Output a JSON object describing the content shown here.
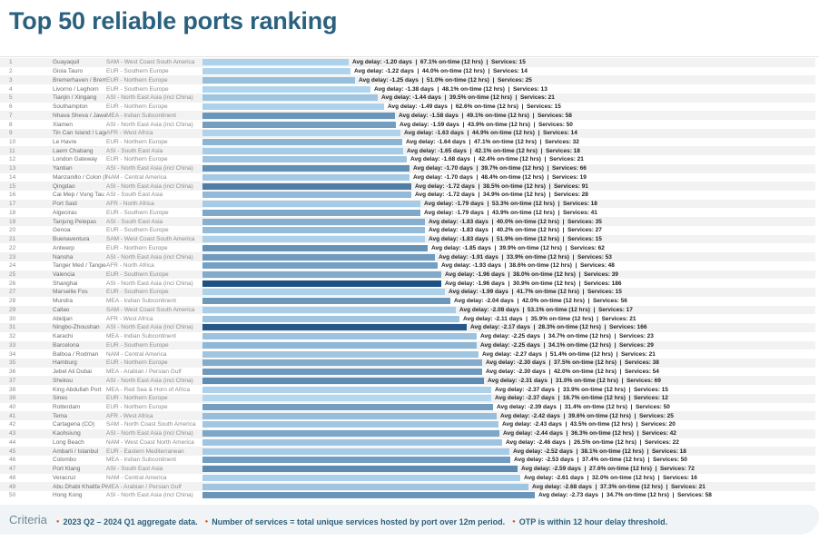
{
  "title": "Top 50 reliable ports ranking",
  "chart_data": {
    "type": "bar",
    "orientation": "horizontal",
    "title": "Top 50 reliable ports ranking",
    "bar_length_encodes": "avg delay magnitude (days)",
    "bar_color_encodes": "number of services (darker = more)",
    "xlim_days": [
      0,
      3
    ],
    "legend": "none",
    "grid": "row banding only",
    "label_template": "Avg delay: {delay} days  |  {otp}% on-time (12 hrs)  |  Services: {services}",
    "rows": [
      {
        "rank": 1,
        "port": "Guayaquil",
        "region": "SAM - West Coast South America",
        "delay": "-1.20",
        "otp": "67.1",
        "services": 15
      },
      {
        "rank": 2,
        "port": "Gioia Tauro",
        "region": "EUR - Southern Europe",
        "delay": "-1.22",
        "otp": "44.0",
        "services": 14
      },
      {
        "rank": 3,
        "port": "Bremerhaven / Bremen",
        "region": "EUR - Northern Europe",
        "delay": "-1.25",
        "otp": "51.0",
        "services": 25
      },
      {
        "rank": 4,
        "port": "Livorno / Leghorn",
        "region": "EUR - Southern Europe",
        "delay": "-1.38",
        "otp": "48.1",
        "services": 13
      },
      {
        "rank": 5,
        "port": "Tianjin / Xingang",
        "region": "ASI - North East Asia (incl China)",
        "delay": "-1.44",
        "otp": "39.5",
        "services": 21
      },
      {
        "rank": 6,
        "port": "Southampton",
        "region": "EUR - Northern Europe",
        "delay": "-1.49",
        "otp": "62.6",
        "services": 15
      },
      {
        "rank": 7,
        "port": "Nhava Sheva / Jawaharlal Nehru",
        "region": "MEA - Indian Subcontinent",
        "delay": "-1.58",
        "otp": "49.1",
        "services": 58
      },
      {
        "rank": 8,
        "port": "Xiamen",
        "region": "ASI - North East Asia (incl China)",
        "delay": "-1.59",
        "otp": "43.9",
        "services": 50
      },
      {
        "rank": 9,
        "port": "Tin Can Island / Lagos",
        "region": "AFR - West Africa",
        "delay": "-1.63",
        "otp": "44.9",
        "services": 14
      },
      {
        "rank": 10,
        "port": "Le Havre",
        "region": "EUR - Northern Europe",
        "delay": "-1.64",
        "otp": "47.1",
        "services": 32
      },
      {
        "rank": 11,
        "port": "Laem Chabang",
        "region": "ASI - South East Asia",
        "delay": "-1.65",
        "otp": "42.1",
        "services": 18
      },
      {
        "rank": 12,
        "port": "London Gateway",
        "region": "EUR - Northern Europe",
        "delay": "-1.68",
        "otp": "42.4",
        "services": 21
      },
      {
        "rank": 13,
        "port": "Yantian",
        "region": "ASI - North East Asia (incl China)",
        "delay": "-1.70",
        "otp": "39.7",
        "services": 66
      },
      {
        "rank": 14,
        "port": "Manzanillo / Colon (PA)",
        "region": "NAM - Central America",
        "delay": "-1.70",
        "otp": "48.4",
        "services": 19
      },
      {
        "rank": 15,
        "port": "Qingdao",
        "region": "ASI - North East Asia (incl China)",
        "delay": "-1.72",
        "otp": "38.5",
        "services": 91
      },
      {
        "rank": 16,
        "port": "Cai Mep / Vung Tau",
        "region": "ASI - South East Asia",
        "delay": "-1.72",
        "otp": "34.9",
        "services": 28
      },
      {
        "rank": 17,
        "port": "Port Said",
        "region": "AFR - North Africa",
        "delay": "-1.79",
        "otp": "53.3",
        "services": 18
      },
      {
        "rank": 18,
        "port": "Algeciras",
        "region": "EUR - Southern Europe",
        "delay": "-1.79",
        "otp": "43.9",
        "services": 41
      },
      {
        "rank": 19,
        "port": "Tanjung Pelepas",
        "region": "ASI - South East Asia",
        "delay": "-1.83",
        "otp": "40.0",
        "services": 35
      },
      {
        "rank": 20,
        "port": "Genoa",
        "region": "EUR - Southern Europe",
        "delay": "-1.83",
        "otp": "40.2",
        "services": 27
      },
      {
        "rank": 21,
        "port": "Buenaventura",
        "region": "SAM - West Coast South America",
        "delay": "-1.83",
        "otp": "51.9",
        "services": 15
      },
      {
        "rank": 22,
        "port": "Antwerp",
        "region": "EUR - Northern Europe",
        "delay": "-1.85",
        "otp": "39.9",
        "services": 62
      },
      {
        "rank": 23,
        "port": "Nansha",
        "region": "ASI - North East Asia (incl China)",
        "delay": "-1.91",
        "otp": "33.9",
        "services": 53
      },
      {
        "rank": 24,
        "port": "Tanger Med / Tangier",
        "region": "AFR - North Africa",
        "delay": "-1.93",
        "otp": "38.6",
        "services": 48
      },
      {
        "rank": 25,
        "port": "Valencia",
        "region": "EUR - Southern Europe",
        "delay": "-1.96",
        "otp": "38.0",
        "services": 39
      },
      {
        "rank": 26,
        "port": "Shanghai",
        "region": "ASI - North East Asia (incl China)",
        "delay": "-1.96",
        "otp": "30.9",
        "services": 186
      },
      {
        "rank": 27,
        "port": "Marseille Fos",
        "region": "EUR - Southern Europe",
        "delay": "-1.99",
        "otp": "41.7",
        "services": 15
      },
      {
        "rank": 28,
        "port": "Mundra",
        "region": "MEA - Indian Subcontinent",
        "delay": "-2.04",
        "otp": "42.0",
        "services": 56
      },
      {
        "rank": 29,
        "port": "Callao",
        "region": "SAM - West Coast South America",
        "delay": "-2.08",
        "otp": "53.1",
        "services": 17
      },
      {
        "rank": 30,
        "port": "Abidjan",
        "region": "AFR - West Africa",
        "delay": "-2.11",
        "otp": "35.9",
        "services": 21
      },
      {
        "rank": 31,
        "port": "Ningbo-Zhoushan",
        "region": "ASI - North East Asia (incl China)",
        "delay": "-2.17",
        "otp": "28.3",
        "services": 166
      },
      {
        "rank": 32,
        "port": "Karachi",
        "region": "MEA - Indian Subcontinent",
        "delay": "-2.25",
        "otp": "34.7",
        "services": 23
      },
      {
        "rank": 33,
        "port": "Barcelona",
        "region": "EUR - Southern Europe",
        "delay": "-2.25",
        "otp": "34.1",
        "services": 29
      },
      {
        "rank": 34,
        "port": "Balboa / Rodman",
        "region": "NAM - Central America",
        "delay": "-2.27",
        "otp": "51.4",
        "services": 21
      },
      {
        "rank": 35,
        "port": "Hamburg",
        "region": "EUR - Northern Europe",
        "delay": "-2.30",
        "otp": "37.5",
        "services": 38
      },
      {
        "rank": 36,
        "port": "Jebel Ali Dubai",
        "region": "MEA - Arabian / Persian Gulf",
        "delay": "-2.30",
        "otp": "42.0",
        "services": 54
      },
      {
        "rank": 37,
        "port": "Shekou",
        "region": "ASI - North East Asia (incl China)",
        "delay": "-2.31",
        "otp": "31.0",
        "services": 69
      },
      {
        "rank": 38,
        "port": "King Abdullah Port",
        "region": "MEA - Red Sea & Horn of Africa",
        "delay": "-2.37",
        "otp": "33.9",
        "services": 15
      },
      {
        "rank": 39,
        "port": "Sines",
        "region": "EUR - Northern Europe",
        "delay": "-2.37",
        "otp": "16.7",
        "services": 12
      },
      {
        "rank": 40,
        "port": "Rotterdam",
        "region": "EUR - Northern Europe",
        "delay": "-2.39",
        "otp": "31.4",
        "services": 50
      },
      {
        "rank": 41,
        "port": "Tema",
        "region": "AFR - West Africa",
        "delay": "-2.42",
        "otp": "39.6",
        "services": 25
      },
      {
        "rank": 42,
        "port": "Cartagena (CO)",
        "region": "SAM - North Coast South America",
        "delay": "-2.43",
        "otp": "43.5",
        "services": 20
      },
      {
        "rank": 43,
        "port": "Kaohsiung",
        "region": "ASI - North East Asia (incl China)",
        "delay": "-2.44",
        "otp": "36.3",
        "services": 42
      },
      {
        "rank": 44,
        "port": "Long Beach",
        "region": "NAM - West Coast North America",
        "delay": "-2.46",
        "otp": "26.5",
        "services": 22
      },
      {
        "rank": 45,
        "port": "Ambarli / Istanbul",
        "region": "EUR - Eastern Mediterranean",
        "delay": "-2.52",
        "otp": "38.1",
        "services": 18
      },
      {
        "rank": 46,
        "port": "Colombo",
        "region": "MEA - Indian Subcontinent",
        "delay": "-2.53",
        "otp": "37.4",
        "services": 50
      },
      {
        "rank": 47,
        "port": "Port Klang",
        "region": "ASI - South East Asia",
        "delay": "-2.59",
        "otp": "27.6",
        "services": 72
      },
      {
        "rank": 48,
        "port": "Veracruz",
        "region": "NAM - Central America",
        "delay": "-2.61",
        "otp": "32.0",
        "services": 16
      },
      {
        "rank": 49,
        "port": "Abu Dhabi Khalifa Port",
        "region": "MEA - Arabian / Persian Gulf",
        "delay": "-2.68",
        "otp": "37.3",
        "services": 21
      },
      {
        "rank": 50,
        "port": "Hong Kong",
        "region": "ASI - North East Asia (incl China)",
        "delay": "-2.73",
        "otp": "34.7",
        "services": 58
      }
    ]
  },
  "footer": {
    "heading": "Criteria",
    "bullet_char": "●",
    "items": [
      "2023 Q2 – 2024 Q1 aggregate data.",
      "Number of services = total unique services hosted by port over 12m period.",
      "OTP is within 12 hour delay threshold."
    ]
  },
  "colors": {
    "title": "#2a617f",
    "divider": "#e4e4e4",
    "row_band": "#f2f2f2",
    "bar_scale_light": "#b4d8f0",
    "bar_scale_dark": "#1b4f82",
    "bar_label_text": "#1f1f1f",
    "footer_bg": "#f0f4f7",
    "footer_heading": "#6e8894",
    "footer_text": "#2d5f7a",
    "bullet": "#d8591d"
  }
}
